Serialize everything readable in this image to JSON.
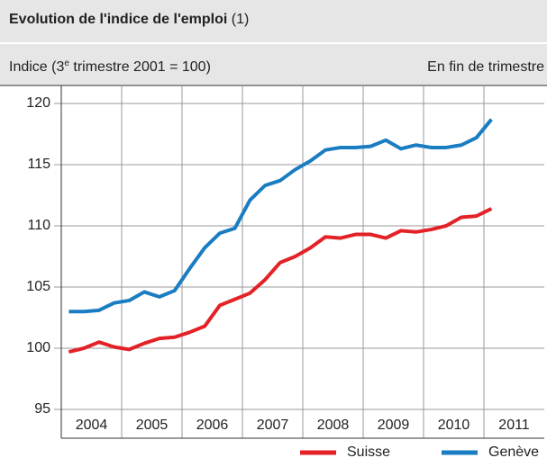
{
  "chart_data": {
    "type": "line",
    "title": "Evolution de l'indice de l'emploi",
    "title_note": "(1)",
    "subtitle_parts": [
      "Indice (3",
      "e",
      " trimestre 2001 = 100)"
    ],
    "note_right": "En fin de trimestre",
    "x": [
      2004.125,
      2004.375,
      2004.625,
      2004.875,
      2005.125,
      2005.375,
      2005.625,
      2005.875,
      2006.125,
      2006.375,
      2006.625,
      2006.875,
      2007.125,
      2007.375,
      2007.625,
      2007.875,
      2008.125,
      2008.375,
      2008.625,
      2008.875,
      2009.125,
      2009.375,
      2009.625,
      2009.875,
      2010.125,
      2010.375,
      2010.625,
      2010.875,
      2011.125
    ],
    "xlim": [
      2004,
      2012
    ],
    "xticks": [
      2004,
      2005,
      2006,
      2007,
      2008,
      2009,
      2010,
      2011,
      2012
    ],
    "x_labels": [
      "2004",
      "2005",
      "2006",
      "2007",
      "2008",
      "2009",
      "2010",
      "2011"
    ],
    "ylim": [
      95,
      120
    ],
    "yticks": [
      95,
      100,
      105,
      110,
      115,
      120
    ],
    "grid": true,
    "legend": "bottom-right",
    "series": [
      {
        "name": "Suisse",
        "color": "#e32228",
        "values": [
          99.7,
          100.0,
          100.5,
          100.1,
          99.9,
          100.4,
          100.8,
          100.9,
          101.3,
          101.8,
          103.5,
          104.0,
          104.5,
          105.6,
          107.0,
          107.5,
          108.2,
          109.1,
          109.0,
          109.3,
          109.3,
          109.0,
          109.6,
          109.5,
          109.7,
          110.0,
          110.7,
          110.8,
          111.4
        ]
      },
      {
        "name": "Genève",
        "color": "#1a7dc1",
        "values": [
          103.0,
          103.0,
          103.1,
          103.7,
          103.9,
          104.6,
          104.2,
          104.7,
          106.5,
          108.2,
          109.4,
          109.8,
          112.1,
          113.3,
          113.7,
          114.6,
          115.3,
          116.2,
          116.4,
          116.4,
          116.5,
          117.0,
          116.3,
          116.6,
          116.4,
          116.4,
          116.6,
          117.2,
          118.7
        ]
      }
    ]
  }
}
